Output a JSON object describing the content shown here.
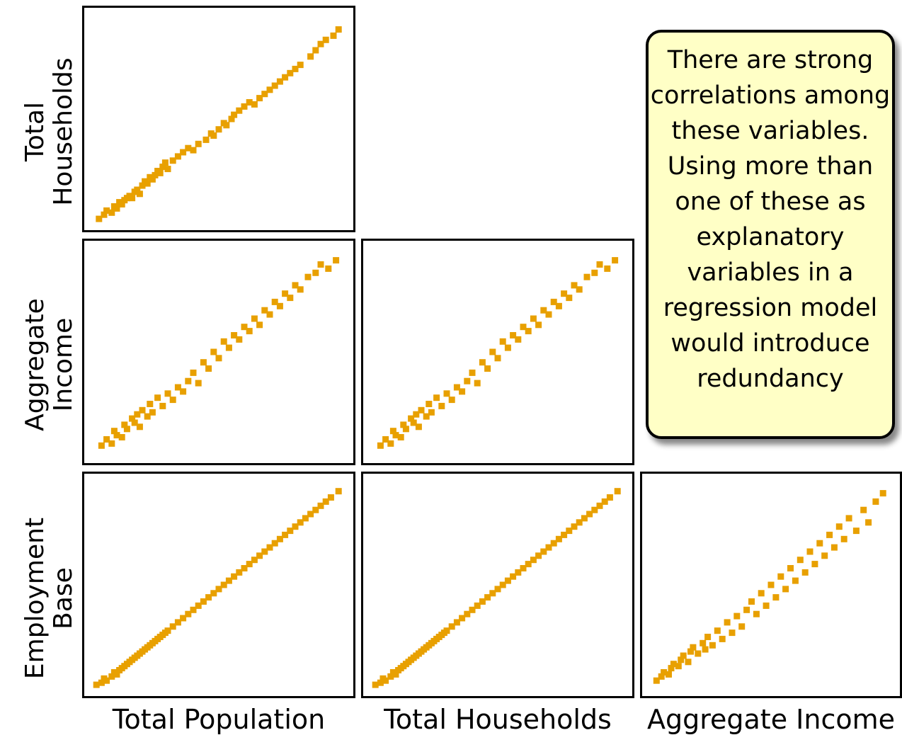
{
  "marker_color": "#e8a000",
  "note": "There are strong correlations among these variables. Using more than one of these as explanatory variables in a regression model would introduce redundancy",
  "row_labels": [
    {
      "line1": "Total",
      "line2": "Households"
    },
    {
      "line1": "Aggregate",
      "line2": "Income"
    },
    {
      "line1": "Employment",
      "line2": "Base"
    }
  ],
  "col_labels": [
    "Total Population",
    "Total Households",
    "Aggregate Income"
  ],
  "chart_data": [
    {
      "type": "scatter",
      "xlabel": "Total Population",
      "ylabel": "Total Households",
      "xlim": [
        0,
        100
      ],
      "ylim": [
        0,
        100
      ],
      "points": [
        [
          3,
          2
        ],
        [
          5,
          4
        ],
        [
          6,
          6
        ],
        [
          8,
          5
        ],
        [
          9,
          8
        ],
        [
          10,
          7
        ],
        [
          11,
          10
        ],
        [
          12,
          9
        ],
        [
          13,
          11
        ],
        [
          14,
          12
        ],
        [
          15,
          13
        ],
        [
          16,
          12
        ],
        [
          17,
          15
        ],
        [
          18,
          16
        ],
        [
          19,
          14
        ],
        [
          20,
          18
        ],
        [
          21,
          20
        ],
        [
          22,
          19
        ],
        [
          23,
          22
        ],
        [
          24,
          21
        ],
        [
          25,
          23
        ],
        [
          26,
          25
        ],
        [
          27,
          24
        ],
        [
          28,
          27
        ],
        [
          30,
          26
        ],
        [
          29,
          29
        ],
        [
          32,
          30
        ],
        [
          34,
          32
        ],
        [
          36,
          34
        ],
        [
          38,
          36
        ],
        [
          40,
          35
        ],
        [
          42,
          38
        ],
        [
          45,
          40
        ],
        [
          47,
          43
        ],
        [
          48,
          42
        ],
        [
          50,
          45
        ],
        [
          52,
          48
        ],
        [
          53,
          47
        ],
        [
          55,
          50
        ],
        [
          56,
          52
        ],
        [
          58,
          54
        ],
        [
          60,
          56
        ],
        [
          62,
          58
        ],
        [
          64,
          57
        ],
        [
          66,
          60
        ],
        [
          68,
          62
        ],
        [
          70,
          64
        ],
        [
          72,
          66
        ],
        [
          74,
          68
        ],
        [
          76,
          70
        ],
        [
          78,
          72
        ],
        [
          80,
          74
        ],
        [
          82,
          76
        ],
        [
          86,
          80
        ],
        [
          88,
          83
        ],
        [
          90,
          86
        ],
        [
          92,
          88
        ],
        [
          95,
          90
        ],
        [
          97,
          93
        ]
      ]
    },
    {
      "type": "scatter",
      "xlabel": "Total Population",
      "ylabel": "Aggregate Income",
      "xlim": [
        0,
        100
      ],
      "ylim": [
        0,
        100
      ],
      "points": [
        [
          4,
          5
        ],
        [
          6,
          8
        ],
        [
          8,
          6
        ],
        [
          9,
          12
        ],
        [
          10,
          10
        ],
        [
          12,
          9
        ],
        [
          13,
          15
        ],
        [
          14,
          13
        ],
        [
          16,
          18
        ],
        [
          17,
          16
        ],
        [
          18,
          20
        ],
        [
          19,
          14
        ],
        [
          20,
          22
        ],
        [
          22,
          19
        ],
        [
          23,
          25
        ],
        [
          24,
          21
        ],
        [
          26,
          28
        ],
        [
          28,
          24
        ],
        [
          30,
          30
        ],
        [
          32,
          27
        ],
        [
          34,
          33
        ],
        [
          36,
          31
        ],
        [
          38,
          36
        ],
        [
          40,
          40
        ],
        [
          42,
          35
        ],
        [
          44,
          45
        ],
        [
          46,
          42
        ],
        [
          48,
          50
        ],
        [
          50,
          47
        ],
        [
          52,
          55
        ],
        [
          54,
          52
        ],
        [
          56,
          58
        ],
        [
          58,
          56
        ],
        [
          60,
          62
        ],
        [
          62,
          60
        ],
        [
          64,
          66
        ],
        [
          66,
          63
        ],
        [
          68,
          70
        ],
        [
          70,
          68
        ],
        [
          72,
          74
        ],
        [
          74,
          72
        ],
        [
          76,
          78
        ],
        [
          78,
          76
        ],
        [
          80,
          82
        ],
        [
          82,
          80
        ],
        [
          85,
          86
        ],
        [
          88,
          88
        ],
        [
          90,
          92
        ],
        [
          93,
          90
        ],
        [
          96,
          94
        ]
      ]
    },
    {
      "type": "scatter",
      "xlabel": "Total Households",
      "ylabel": "Aggregate Income",
      "xlim": [
        0,
        100
      ],
      "ylim": [
        0,
        100
      ],
      "points": [
        [
          4,
          5
        ],
        [
          6,
          8
        ],
        [
          8,
          6
        ],
        [
          9,
          12
        ],
        [
          10,
          10
        ],
        [
          12,
          9
        ],
        [
          13,
          15
        ],
        [
          14,
          13
        ],
        [
          16,
          18
        ],
        [
          17,
          16
        ],
        [
          18,
          20
        ],
        [
          19,
          14
        ],
        [
          20,
          22
        ],
        [
          22,
          19
        ],
        [
          23,
          25
        ],
        [
          24,
          21
        ],
        [
          26,
          28
        ],
        [
          28,
          24
        ],
        [
          30,
          30
        ],
        [
          32,
          27
        ],
        [
          34,
          33
        ],
        [
          36,
          31
        ],
        [
          38,
          36
        ],
        [
          40,
          40
        ],
        [
          42,
          35
        ],
        [
          44,
          45
        ],
        [
          46,
          42
        ],
        [
          48,
          50
        ],
        [
          50,
          47
        ],
        [
          52,
          55
        ],
        [
          54,
          52
        ],
        [
          56,
          58
        ],
        [
          58,
          56
        ],
        [
          60,
          62
        ],
        [
          62,
          60
        ],
        [
          64,
          66
        ],
        [
          66,
          63
        ],
        [
          68,
          70
        ],
        [
          70,
          68
        ],
        [
          72,
          74
        ],
        [
          74,
          72
        ],
        [
          76,
          78
        ],
        [
          78,
          76
        ],
        [
          80,
          82
        ],
        [
          82,
          80
        ],
        [
          85,
          86
        ],
        [
          88,
          88
        ],
        [
          90,
          92
        ],
        [
          93,
          90
        ],
        [
          96,
          94
        ]
      ]
    },
    {
      "type": "scatter",
      "xlabel": "Total Population",
      "ylabel": "Employment Base",
      "xlim": [
        0,
        100
      ],
      "ylim": [
        0,
        100
      ],
      "points": [
        [
          2,
          2
        ],
        [
          4,
          3
        ],
        [
          5,
          5
        ],
        [
          6,
          4
        ],
        [
          8,
          6
        ],
        [
          9,
          8
        ],
        [
          10,
          7
        ],
        [
          11,
          9
        ],
        [
          12,
          10
        ],
        [
          13,
          11
        ],
        [
          14,
          12
        ],
        [
          15,
          13
        ],
        [
          16,
          14
        ],
        [
          17,
          15
        ],
        [
          18,
          16
        ],
        [
          19,
          17
        ],
        [
          20,
          18
        ],
        [
          21,
          19
        ],
        [
          22,
          20
        ],
        [
          23,
          21
        ],
        [
          24,
          22
        ],
        [
          25,
          23
        ],
        [
          26,
          24
        ],
        [
          27,
          25
        ],
        [
          28,
          26
        ],
        [
          29,
          27
        ],
        [
          30,
          28
        ],
        [
          32,
          30
        ],
        [
          34,
          32
        ],
        [
          36,
          34
        ],
        [
          38,
          36
        ],
        [
          40,
          38
        ],
        [
          42,
          40
        ],
        [
          44,
          42
        ],
        [
          46,
          44
        ],
        [
          48,
          46
        ],
        [
          50,
          48
        ],
        [
          52,
          50
        ],
        [
          54,
          52
        ],
        [
          56,
          54
        ],
        [
          58,
          56
        ],
        [
          60,
          58
        ],
        [
          62,
          60
        ],
        [
          64,
          62
        ],
        [
          66,
          64
        ],
        [
          68,
          66
        ],
        [
          70,
          68
        ],
        [
          72,
          70
        ],
        [
          74,
          72
        ],
        [
          76,
          74
        ],
        [
          78,
          76
        ],
        [
          80,
          78
        ],
        [
          82,
          80
        ],
        [
          84,
          82
        ],
        [
          86,
          84
        ],
        [
          88,
          86
        ],
        [
          90,
          88
        ],
        [
          92,
          90
        ],
        [
          94,
          92
        ],
        [
          97,
          95
        ]
      ]
    },
    {
      "type": "scatter",
      "xlabel": "Total Households",
      "ylabel": "Employment Base",
      "xlim": [
        0,
        100
      ],
      "ylim": [
        0,
        100
      ],
      "points": [
        [
          2,
          2
        ],
        [
          4,
          3
        ],
        [
          5,
          5
        ],
        [
          6,
          4
        ],
        [
          8,
          6
        ],
        [
          9,
          8
        ],
        [
          10,
          7
        ],
        [
          11,
          9
        ],
        [
          12,
          10
        ],
        [
          13,
          11
        ],
        [
          14,
          12
        ],
        [
          15,
          13
        ],
        [
          16,
          14
        ],
        [
          17,
          15
        ],
        [
          18,
          16
        ],
        [
          19,
          17
        ],
        [
          20,
          18
        ],
        [
          21,
          19
        ],
        [
          22,
          20
        ],
        [
          23,
          21
        ],
        [
          24,
          22
        ],
        [
          25,
          23
        ],
        [
          26,
          24
        ],
        [
          27,
          25
        ],
        [
          28,
          26
        ],
        [
          29,
          27
        ],
        [
          30,
          28
        ],
        [
          32,
          30
        ],
        [
          34,
          32
        ],
        [
          36,
          34
        ],
        [
          38,
          36
        ],
        [
          40,
          38
        ],
        [
          42,
          40
        ],
        [
          44,
          42
        ],
        [
          46,
          44
        ],
        [
          48,
          46
        ],
        [
          50,
          48
        ],
        [
          52,
          50
        ],
        [
          54,
          52
        ],
        [
          56,
          54
        ],
        [
          58,
          56
        ],
        [
          60,
          58
        ],
        [
          62,
          60
        ],
        [
          64,
          62
        ],
        [
          66,
          64
        ],
        [
          68,
          66
        ],
        [
          70,
          68
        ],
        [
          72,
          70
        ],
        [
          74,
          72
        ],
        [
          76,
          74
        ],
        [
          78,
          76
        ],
        [
          80,
          78
        ],
        [
          82,
          80
        ],
        [
          84,
          82
        ],
        [
          86,
          84
        ],
        [
          88,
          86
        ],
        [
          90,
          88
        ],
        [
          92,
          90
        ],
        [
          94,
          92
        ],
        [
          97,
          95
        ]
      ]
    },
    {
      "type": "scatter",
      "xlabel": "Aggregate Income",
      "ylabel": "Employment Base",
      "xlim": [
        0,
        100
      ],
      "ylim": [
        0,
        100
      ],
      "points": [
        [
          3,
          4
        ],
        [
          5,
          6
        ],
        [
          6,
          8
        ],
        [
          8,
          7
        ],
        [
          9,
          10
        ],
        [
          10,
          12
        ],
        [
          12,
          11
        ],
        [
          13,
          14
        ],
        [
          14,
          16
        ],
        [
          16,
          13
        ],
        [
          17,
          18
        ],
        [
          18,
          20
        ],
        [
          20,
          17
        ],
        [
          22,
          22
        ],
        [
          23,
          19
        ],
        [
          24,
          25
        ],
        [
          26,
          21
        ],
        [
          28,
          28
        ],
        [
          30,
          24
        ],
        [
          32,
          32
        ],
        [
          34,
          27
        ],
        [
          36,
          35
        ],
        [
          38,
          30
        ],
        [
          40,
          38
        ],
        [
          42,
          42
        ],
        [
          44,
          36
        ],
        [
          46,
          46
        ],
        [
          48,
          40
        ],
        [
          50,
          50
        ],
        [
          52,
          44
        ],
        [
          54,
          54
        ],
        [
          56,
          48
        ],
        [
          58,
          58
        ],
        [
          60,
          52
        ],
        [
          62,
          62
        ],
        [
          64,
          56
        ],
        [
          66,
          66
        ],
        [
          68,
          60
        ],
        [
          70,
          70
        ],
        [
          72,
          64
        ],
        [
          74,
          74
        ],
        [
          76,
          68
        ],
        [
          78,
          78
        ],
        [
          80,
          72
        ],
        [
          82,
          82
        ],
        [
          85,
          76
        ],
        [
          88,
          86
        ],
        [
          90,
          80
        ],
        [
          93,
          90
        ],
        [
          96,
          94
        ]
      ]
    }
  ]
}
